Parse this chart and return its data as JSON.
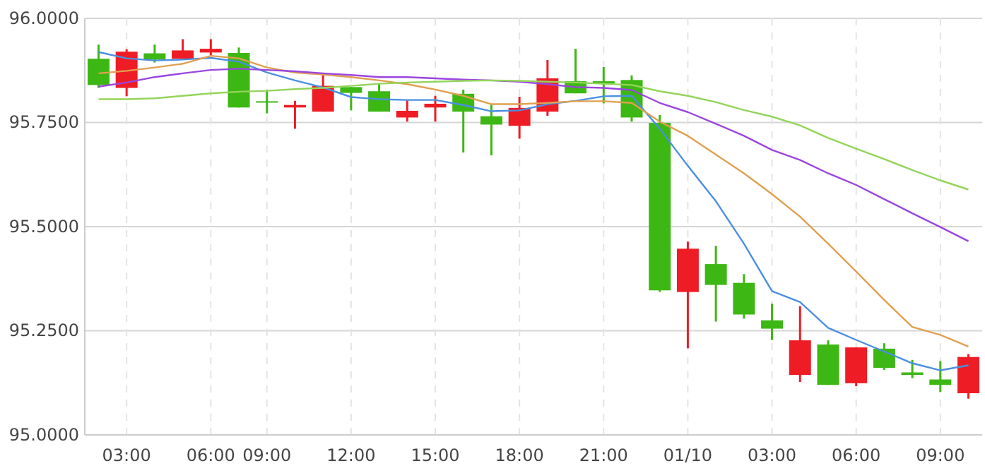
{
  "chart_data": {
    "type": "candlestick",
    "categories": [
      null,
      "03:00",
      null,
      null,
      "06:00",
      null,
      "09:00",
      null,
      null,
      "12:00",
      null,
      null,
      "15:00",
      null,
      null,
      "18:00",
      null,
      null,
      "21:00",
      null,
      null,
      "01/10",
      null,
      null,
      "03:00",
      null,
      null,
      "06:00",
      null,
      null,
      "09:00",
      null
    ],
    "ohlc": [
      [
        95.903,
        95.937,
        95.833,
        95.84
      ],
      [
        95.833,
        95.926,
        95.813,
        95.92
      ],
      [
        95.916,
        95.937,
        95.894,
        95.901
      ],
      [
        95.903,
        95.95,
        95.903,
        95.923
      ],
      [
        95.918,
        95.95,
        95.91,
        95.927
      ],
      [
        95.917,
        95.93,
        95.786,
        95.786
      ],
      [
        95.801,
        95.828,
        95.772,
        95.799
      ],
      [
        95.786,
        95.802,
        95.735,
        95.792
      ],
      [
        95.776,
        95.865,
        95.776,
        95.838
      ],
      [
        95.835,
        95.835,
        95.779,
        95.821
      ],
      [
        95.825,
        95.842,
        95.776,
        95.776
      ],
      [
        95.762,
        95.803,
        95.752,
        95.778
      ],
      [
        95.786,
        95.814,
        95.752,
        95.795
      ],
      [
        95.819,
        95.829,
        95.678,
        95.776
      ],
      [
        95.765,
        95.794,
        95.671,
        95.745
      ],
      [
        95.742,
        95.812,
        95.711,
        95.785
      ],
      [
        95.776,
        95.9,
        95.766,
        95.856
      ],
      [
        95.849,
        95.927,
        95.82,
        95.82
      ],
      [
        95.849,
        95.883,
        95.796,
        95.843
      ],
      [
        95.852,
        95.863,
        95.752,
        95.762
      ],
      [
        95.749,
        95.768,
        95.343,
        95.347
      ],
      [
        95.343,
        95.464,
        95.208,
        95.447
      ],
      [
        95.41,
        95.454,
        95.272,
        95.36
      ],
      [
        95.365,
        95.386,
        95.279,
        95.289
      ],
      [
        95.275,
        95.315,
        95.228,
        95.255
      ],
      [
        95.144,
        95.309,
        95.127,
        95.227
      ],
      [
        95.217,
        95.227,
        95.12,
        95.12
      ],
      [
        95.124,
        95.21,
        95.117,
        95.21
      ],
      [
        95.207,
        95.22,
        95.156,
        95.161
      ],
      [
        95.15,
        95.18,
        95.136,
        95.144
      ],
      [
        95.133,
        95.177,
        95.103,
        95.12
      ],
      [
        95.1,
        95.194,
        95.087,
        95.187
      ]
    ],
    "colors": [
      "#3db714",
      "#ee1c24",
      "#3db714",
      "#ee1c24",
      "#ee1c24",
      "#3db714",
      "#3db714",
      "#ee1c24",
      "#ee1c24",
      "#3db714",
      "#3db714",
      "#ee1c24",
      "#ee1c24",
      "#3db714",
      "#3db714",
      "#ee1c24",
      "#ee1c24",
      "#3db714",
      "#3db714",
      "#3db714",
      "#3db714",
      "#ee1c24",
      "#3db714",
      "#3db714",
      "#3db714",
      "#ee1c24",
      "#3db714",
      "#ee1c24",
      "#3db714",
      "#3db714",
      "#3db714",
      "#ee1c24"
    ],
    "series": [
      {
        "type": "line",
        "color": "#4a8fe0",
        "values": [
          95.919,
          95.904,
          95.899,
          95.901,
          95.905,
          95.896,
          95.87,
          95.851,
          95.834,
          95.811,
          95.806,
          95.804,
          95.804,
          95.792,
          95.777,
          95.779,
          95.794,
          95.802,
          95.813,
          95.814,
          95.735,
          95.646,
          95.561,
          95.459,
          95.345,
          95.319,
          95.257,
          95.228,
          95.2,
          95.172,
          95.155,
          95.167
        ]
      },
      {
        "type": "line",
        "color": "#e0a050",
        "values": [
          95.868,
          95.874,
          95.882,
          95.891,
          95.91,
          95.904,
          95.882,
          95.87,
          95.865,
          95.859,
          95.851,
          95.842,
          95.829,
          95.814,
          95.794,
          95.794,
          95.797,
          95.801,
          95.801,
          95.797,
          95.752,
          95.718,
          95.673,
          95.628,
          95.578,
          95.524,
          95.459,
          95.392,
          95.324,
          95.259,
          95.24,
          95.212
        ]
      },
      {
        "type": "line",
        "color": "#9b45e0",
        "values": [
          95.836,
          95.846,
          95.859,
          95.868,
          95.876,
          95.879,
          95.876,
          95.873,
          95.868,
          95.864,
          95.859,
          95.859,
          95.856,
          95.853,
          95.851,
          95.848,
          95.842,
          95.835,
          95.833,
          95.828,
          95.797,
          95.775,
          95.747,
          95.718,
          95.684,
          95.66,
          95.628,
          95.6,
          95.566,
          95.532,
          95.499,
          95.465
        ]
      },
      {
        "type": "line",
        "color": "#94d45a",
        "values": [
          95.806,
          95.806,
          95.808,
          95.814,
          95.82,
          95.824,
          95.826,
          95.83,
          95.833,
          95.838,
          95.843,
          95.846,
          95.848,
          95.85,
          95.851,
          95.85,
          95.848,
          95.846,
          95.843,
          95.84,
          95.825,
          95.814,
          95.799,
          95.78,
          95.764,
          95.743,
          95.713,
          95.687,
          95.662,
          95.636,
          95.611,
          95.589
        ]
      }
    ],
    "ylim": [
      95,
      96
    ],
    "yticks": [
      {
        "value": 95,
        "label": "95.0000"
      },
      {
        "value": 95.25,
        "label": "95.2500"
      },
      {
        "value": 95.5,
        "label": "95.5000"
      },
      {
        "value": 95.75,
        "label": "95.7500"
      },
      {
        "value": 96,
        "label": "96.0000"
      }
    ],
    "grid": true
  }
}
